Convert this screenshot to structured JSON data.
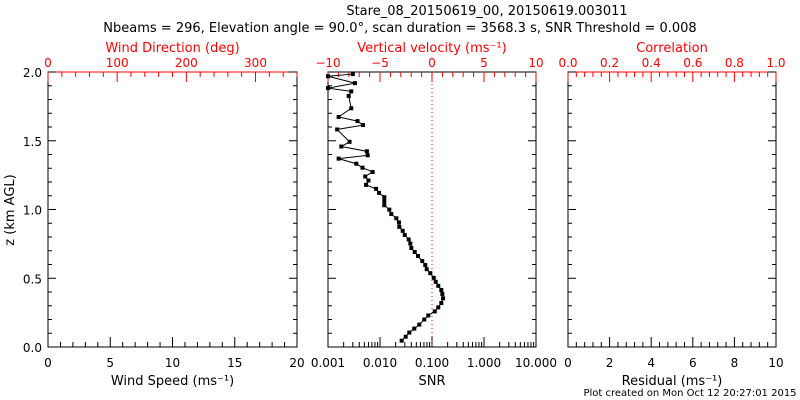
{
  "title_line1": "Stare_08_20150619_00, 20150619.003011",
  "title_line2": "Nbeams = 296, Elevation angle = 90.0°, scan duration = 3568.3 s, SNR Threshold = 0.008",
  "footer": "Plot created on Mon Oct 12 20:27:01 2015",
  "colors": {
    "axis": "#000000",
    "secondary_axis": "#ff0000",
    "points": "#000000",
    "reference_line": "#ff0000"
  },
  "chart_data": [
    {
      "type": "line",
      "panel": "left",
      "ylabel": "z (km AGL)",
      "ylim": [
        0,
        2.0
      ],
      "yticks": [
        "0.0",
        "0.5",
        "1.0",
        "1.5",
        "2.0"
      ],
      "xlabel": "Wind Speed (ms⁻¹)",
      "xlim": [
        0,
        20
      ],
      "xticks": [
        "0",
        "5",
        "10",
        "15",
        "20"
      ],
      "top_xlabel": "Wind Direction (deg)",
      "top_xlim": [
        0,
        360
      ],
      "top_xticks": [
        "0",
        "100",
        "200",
        "300"
      ],
      "series": []
    },
    {
      "type": "scatter",
      "panel": "middle",
      "xlabel": "SNR",
      "xscale": "log",
      "xlim": [
        0.001,
        10
      ],
      "xticks": [
        "0.001",
        "0.010",
        "0.100",
        "1.000",
        "10.000"
      ],
      "top_xlabel": "Vertical velocity (ms⁻¹)",
      "top_xlim": [
        -10,
        10
      ],
      "top_xticks": [
        "−10",
        "−5",
        "0",
        "5",
        "10"
      ],
      "reference_line_snr": 0.1,
      "ylim": [
        0,
        2.0
      ],
      "series": [
        {
          "name": "SNR profile",
          "z": [
            1.985,
            1.969,
            1.919,
            1.883,
            1.859,
            1.826,
            1.736,
            1.673,
            1.643,
            1.614,
            1.582,
            1.492,
            1.458,
            1.423,
            1.394,
            1.37,
            1.333,
            1.304,
            1.273,
            1.24,
            1.211,
            1.179,
            1.15,
            1.121,
            1.089,
            1.06,
            1.031,
            0.999,
            0.967,
            0.936,
            0.906,
            0.874,
            0.845,
            0.815,
            0.782,
            0.752,
            0.72,
            0.691,
            0.662,
            0.625,
            0.596,
            0.566,
            0.537,
            0.503,
            0.474,
            0.445,
            0.415,
            0.386,
            0.354,
            0.32,
            0.288,
            0.259,
            0.229,
            0.2,
            0.163,
            0.134,
            0.105,
            0.075,
            0.046
          ],
          "snr": [
            0.003,
            0.001,
            0.0033,
            0.001,
            0.0028,
            0.0025,
            0.0028,
            0.0016,
            0.0037,
            0.0047,
            0.0015,
            0.0026,
            0.0018,
            0.0056,
            0.0058,
            0.0016,
            0.0035,
            0.0046,
            0.0072,
            0.0052,
            0.006,
            0.0054,
            0.0084,
            0.0096,
            0.0121,
            0.0121,
            0.0121,
            0.0151,
            0.0165,
            0.0206,
            0.0232,
            0.0235,
            0.0273,
            0.0299,
            0.0356,
            0.0383,
            0.04,
            0.0465,
            0.0538,
            0.065,
            0.0743,
            0.0791,
            0.0927,
            0.108,
            0.118,
            0.132,
            0.151,
            0.158,
            0.163,
            0.151,
            0.132,
            0.113,
            0.0849,
            0.0711,
            0.057,
            0.0457,
            0.0366,
            0.0312,
            0.0261
          ]
        }
      ]
    },
    {
      "type": "line",
      "panel": "right",
      "xlabel": "Residual (ms⁻¹)",
      "xlim": [
        0,
        10
      ],
      "xticks": [
        "0",
        "2",
        "4",
        "6",
        "8",
        "10"
      ],
      "top_xlabel": "Correlation",
      "top_xlim": [
        0,
        1
      ],
      "top_xticks": [
        "0.0",
        "0.2",
        "0.4",
        "0.6",
        "0.8",
        "1.0"
      ],
      "ylim": [
        0,
        2.0
      ],
      "series": []
    }
  ]
}
